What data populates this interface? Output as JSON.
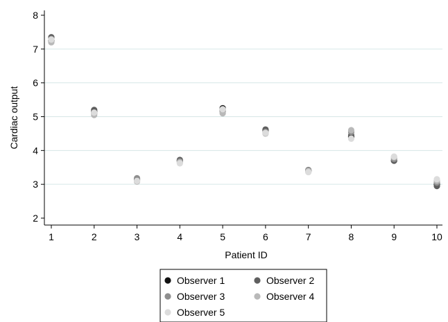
{
  "chart_data": {
    "type": "scatter",
    "title": "",
    "xlabel": "Patient ID",
    "ylabel": "Cardiac output",
    "xlim": [
      1,
      10
    ],
    "ylim": [
      2,
      8
    ],
    "xticks": [
      "1",
      "2",
      "3",
      "4",
      "5",
      "6",
      "7",
      "8",
      "9",
      "10"
    ],
    "yticks": [
      "2",
      "3",
      "4",
      "5",
      "6",
      "7",
      "8"
    ],
    "grid": "horizontal",
    "legend_position": "bottom",
    "series": [
      {
        "name": "Observer 1",
        "color": "#111111",
        "points": [
          [
            1,
            7.25
          ],
          [
            2,
            5.15
          ],
          [
            3,
            3.15
          ],
          [
            4,
            3.7
          ],
          [
            5,
            5.25
          ],
          [
            6,
            4.6
          ],
          [
            7,
            3.4
          ],
          [
            8,
            4.4
          ],
          [
            9,
            3.7
          ],
          [
            10,
            3.0
          ]
        ]
      },
      {
        "name": "Observer 2",
        "color": "#5f5f5f",
        "points": [
          [
            1,
            7.35
          ],
          [
            2,
            5.2
          ],
          [
            3,
            3.12
          ],
          [
            4,
            3.72
          ],
          [
            5,
            5.2
          ],
          [
            6,
            4.62
          ],
          [
            7,
            3.42
          ],
          [
            8,
            4.45
          ],
          [
            9,
            3.7
          ],
          [
            10,
            2.95
          ]
        ]
      },
      {
        "name": "Observer 3",
        "color": "#8f8f8f",
        "points": [
          [
            1,
            7.3
          ],
          [
            2,
            5.1
          ],
          [
            3,
            3.18
          ],
          [
            4,
            3.68
          ],
          [
            5,
            5.15
          ],
          [
            6,
            4.55
          ],
          [
            7,
            3.38
          ],
          [
            8,
            4.55
          ],
          [
            9,
            3.75
          ],
          [
            10,
            3.05
          ]
        ]
      },
      {
        "name": "Observer 4",
        "color": "#b9b9b9",
        "points": [
          [
            1,
            7.2
          ],
          [
            2,
            5.05
          ],
          [
            3,
            3.08
          ],
          [
            4,
            3.65
          ],
          [
            5,
            5.1
          ],
          [
            6,
            4.5
          ],
          [
            7,
            3.4
          ],
          [
            8,
            4.6
          ],
          [
            9,
            3.8
          ],
          [
            10,
            3.1
          ]
        ]
      },
      {
        "name": "Observer 5",
        "color": "#dcdcdc",
        "points": [
          [
            1,
            7.28
          ],
          [
            2,
            5.12
          ],
          [
            3,
            3.1
          ],
          [
            4,
            3.62
          ],
          [
            5,
            5.22
          ],
          [
            6,
            4.52
          ],
          [
            7,
            3.36
          ],
          [
            8,
            4.35
          ],
          [
            9,
            3.82
          ],
          [
            10,
            3.15
          ]
        ]
      }
    ]
  }
}
